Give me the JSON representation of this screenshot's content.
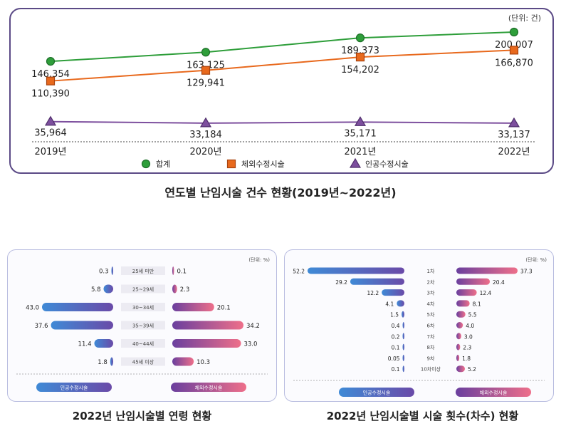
{
  "line_chart": {
    "unit": "(단위: 건)",
    "caption": "연도별 난임시술 건수 현황(2019년~2022년)",
    "years": [
      "2019년",
      "2020년",
      "2021년",
      "2022년"
    ],
    "series": [
      {
        "name": "합계",
        "values": [
          146354,
          163125,
          189373,
          200007
        ],
        "labels": [
          "146,354",
          "163,125",
          "189,373",
          "200,007"
        ],
        "color": "#2e9e3a",
        "marker": "circle"
      },
      {
        "name": "체외수정시술",
        "values": [
          110390,
          129941,
          154202,
          166870
        ],
        "labels": [
          "110,390",
          "129,941",
          "154,202",
          "166,870"
        ],
        "color": "#e8691d",
        "marker": "square"
      },
      {
        "name": "인공수정시술",
        "values": [
          35964,
          33184,
          35171,
          33137
        ],
        "labels": [
          "35,964",
          "33,184",
          "35,171",
          "33,137"
        ],
        "color": "#7d4f9e",
        "marker": "triangle"
      }
    ]
  },
  "age_chart": {
    "unit": "(단위: %)",
    "caption": "2022년 난임시술별 연령 현황",
    "categories": [
      "25세 미만",
      "25~29세",
      "30~34세",
      "35~39세",
      "40~44세",
      "45세 이상"
    ],
    "left_series": {
      "name": "인공수정시술",
      "values": [
        0.3,
        5.8,
        43.0,
        37.6,
        11.4,
        1.8
      ],
      "labels": [
        "0.3",
        "5.8",
        "43.0",
        "37.6",
        "11.4",
        "1.8"
      ]
    },
    "right_series": {
      "name": "체외수정시술",
      "values": [
        0.1,
        2.3,
        20.1,
        34.2,
        33.0,
        10.3
      ],
      "labels": [
        "0.1",
        "2.3",
        "20.1",
        "34.2",
        "33.0",
        "10.3"
      ]
    }
  },
  "count_chart": {
    "unit": "(단위: %)",
    "caption": "2022년 난임시술별 시술 횟수(차수) 현황",
    "categories": [
      "1차",
      "2차",
      "3차",
      "4차",
      "5차",
      "6차",
      "7차",
      "8차",
      "9차",
      "10차이상"
    ],
    "left_series": {
      "name": "인공수정시술",
      "values": [
        52.2,
        29.2,
        12.2,
        4.1,
        1.5,
        0.4,
        0.2,
        0.1,
        0.05,
        0.1
      ],
      "labels": [
        "52.2",
        "29.2",
        "12.2",
        "4.1",
        "1.5",
        "0.4",
        "0.2",
        "0.1",
        "0.05",
        "0.1"
      ]
    },
    "right_series": {
      "name": "체외수정시술",
      "values": [
        37.3,
        20.4,
        12.4,
        8.1,
        5.5,
        4.0,
        3.0,
        2.3,
        1.8,
        5.2
      ],
      "labels": [
        "37.3",
        "20.4",
        "12.4",
        "8.1",
        "5.5",
        "4.0",
        "3.0",
        "2.3",
        "1.8",
        "5.2"
      ]
    }
  },
  "chart_data": [
    {
      "type": "line",
      "title": "연도별 난임시술 건수 현황(2019년~2022년)",
      "x": [
        "2019년",
        "2020년",
        "2021년",
        "2022년"
      ],
      "ylabel": "(단위: 건)",
      "series": [
        {
          "name": "합계",
          "values": [
            146354,
            163125,
            189373,
            200007
          ]
        },
        {
          "name": "체외수정시술",
          "values": [
            110390,
            129941,
            154202,
            166870
          ]
        },
        {
          "name": "인공수정시술",
          "values": [
            35964,
            33184,
            35171,
            33137
          ]
        }
      ]
    },
    {
      "type": "bar",
      "title": "2022년 난임시술별 연령 현황",
      "categories": [
        "25세 미만",
        "25~29세",
        "30~34세",
        "35~39세",
        "40~44세",
        "45세 이상"
      ],
      "ylabel": "(단위: %)",
      "series": [
        {
          "name": "인공수정시술",
          "values": [
            0.3,
            5.8,
            43.0,
            37.6,
            11.4,
            1.8
          ]
        },
        {
          "name": "체외수정시술",
          "values": [
            0.1,
            2.3,
            20.1,
            34.2,
            33.0,
            10.3
          ]
        }
      ]
    },
    {
      "type": "bar",
      "title": "2022년 난임시술별 시술 횟수(차수) 현황",
      "categories": [
        "1차",
        "2차",
        "3차",
        "4차",
        "5차",
        "6차",
        "7차",
        "8차",
        "9차",
        "10차이상"
      ],
      "ylabel": "(단위: %)",
      "series": [
        {
          "name": "인공수정시술",
          "values": [
            52.2,
            29.2,
            12.2,
            4.1,
            1.5,
            0.4,
            0.2,
            0.1,
            0.05,
            0.1
          ]
        },
        {
          "name": "체외수정시술",
          "values": [
            37.3,
            20.4,
            12.4,
            8.1,
            5.5,
            4.0,
            3.0,
            2.3,
            1.8,
            5.2
          ]
        }
      ]
    }
  ]
}
